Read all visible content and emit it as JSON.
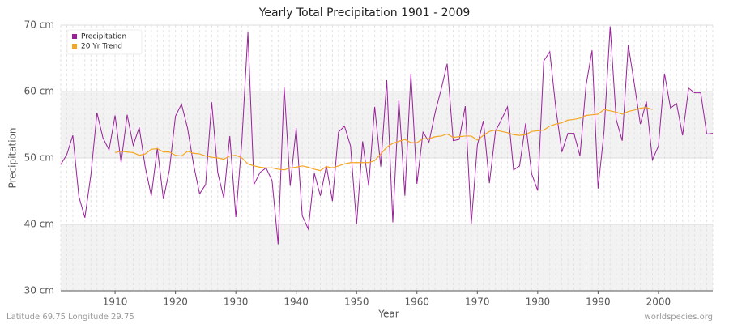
{
  "chart_data": {
    "type": "line",
    "title": "Yearly Total Precipitation 1901 - 2009",
    "x_label": "Year",
    "y_label": "Precipitation",
    "footer_left": "Latitude 69.75 Longitude 29.75",
    "footer_right": "worldspecies.org",
    "legend": "top-left",
    "grid": true,
    "x": [
      1901,
      1902,
      1903,
      1904,
      1905,
      1906,
      1907,
      1908,
      1909,
      1910,
      1911,
      1912,
      1913,
      1914,
      1915,
      1916,
      1917,
      1918,
      1919,
      1920,
      1921,
      1922,
      1923,
      1924,
      1925,
      1926,
      1927,
      1928,
      1929,
      1930,
      1931,
      1932,
      1933,
      1934,
      1935,
      1936,
      1937,
      1938,
      1939,
      1940,
      1941,
      1942,
      1943,
      1944,
      1945,
      1946,
      1947,
      1948,
      1949,
      1950,
      1951,
      1952,
      1953,
      1954,
      1955,
      1956,
      1957,
      1958,
      1959,
      1960,
      1961,
      1962,
      1963,
      1964,
      1965,
      1966,
      1967,
      1968,
      1969,
      1970,
      1971,
      1972,
      1973,
      1974,
      1975,
      1976,
      1977,
      1978,
      1979,
      1980,
      1981,
      1982,
      1983,
      1984,
      1985,
      1986,
      1987,
      1988,
      1989,
      1990,
      1991,
      1992,
      1993,
      1994,
      1995,
      1996,
      1997,
      1998,
      1999,
      2000,
      2001,
      2002,
      2003,
      2004,
      2005,
      2006,
      2007,
      2008,
      2009
    ],
    "series": [
      {
        "name": "Precipitation",
        "color": "#9b1f9b",
        "values": [
          49,
          50.5,
          53.4,
          44.2,
          41,
          47.5,
          56.8,
          53,
          51.2,
          56.4,
          49.3,
          56.5,
          51.9,
          54.6,
          48.6,
          44.3,
          51.5,
          43.8,
          48.2,
          56.3,
          58.1,
          54.5,
          49,
          44.6,
          46,
          58.4,
          47.8,
          44,
          53.3,
          41.1,
          52.5,
          68.9,
          46,
          47.8,
          48.5,
          46.6,
          37,
          60.7,
          45.8,
          54.5,
          41.3,
          39.3,
          47.7,
          44.3,
          48.8,
          43.5,
          53.9,
          54.8,
          51.8,
          40,
          52.5,
          45.8,
          57.7,
          48.7,
          61.7,
          40.3,
          58.8,
          44.3,
          62.7,
          46.1,
          53.9,
          52.4,
          56.8,
          60.3,
          64.2,
          52.6,
          52.8,
          57.8,
          40.1,
          51.9,
          55.6,
          46.2,
          54,
          55.8,
          57.7,
          48.2,
          48.8,
          55.2,
          47.6,
          45.1,
          64.6,
          66,
          57.5,
          50.9,
          53.7,
          53.7,
          50.3,
          60.9,
          66.2,
          45.4,
          54.1,
          69.8,
          55.8,
          52.6,
          67,
          61.2,
          55.1,
          58.5,
          49.7,
          51.8,
          62.7,
          57.5,
          58.2,
          53.4,
          60.5,
          59.8,
          59.8,
          53.6,
          53.7
        ]
      },
      {
        "name": "20 Yr Trend",
        "color": "#f5a623",
        "values": [
          null,
          null,
          null,
          null,
          null,
          null,
          null,
          null,
          null,
          50.8,
          51,
          50.9,
          50.8,
          50.4,
          50.6,
          51.3,
          51.4,
          50.9,
          50.9,
          50.4,
          50.3,
          51,
          50.7,
          50.6,
          50.3,
          50.1,
          50,
          49.8,
          50.3,
          50.4,
          50,
          49.1,
          48.8,
          48.6,
          48.5,
          48.5,
          48.3,
          48.2,
          48.5,
          48.6,
          48.8,
          48.6,
          48.3,
          48.1,
          48.7,
          48.5,
          48.8,
          49.1,
          49.3,
          49.3,
          49.3,
          49.3,
          49.6,
          50.6,
          51.6,
          52.2,
          52.5,
          52.8,
          52.3,
          52.3,
          52.9,
          52.9,
          53.2,
          53.3,
          53.6,
          53.1,
          53.2,
          53.3,
          53.3,
          52.7,
          53.4,
          54,
          54.2,
          54,
          53.8,
          53.5,
          53.4,
          53.5,
          54,
          54.1,
          54.2,
          54.8,
          55.1,
          55.3,
          55.7,
          55.8,
          56,
          56.4,
          56.5,
          56.6,
          57.3,
          57.1,
          56.9,
          56.6,
          57,
          57.2,
          57.5,
          57.6,
          57.3,
          null,
          null,
          null,
          null,
          null,
          null,
          null,
          null,
          null,
          null
        ]
      }
    ],
    "xlim": [
      1901,
      2009
    ],
    "xticks": [
      1910,
      1920,
      1930,
      1940,
      1950,
      1960,
      1970,
      1980,
      1990,
      2000
    ],
    "ylim": [
      30,
      70
    ],
    "yticks": [
      {
        "value": 30,
        "label": "30 cm"
      },
      {
        "value": 40,
        "label": "40 cm"
      },
      {
        "value": 50,
        "label": "50 cm"
      },
      {
        "value": 60,
        "label": "60 cm"
      },
      {
        "value": 70,
        "label": "70 cm"
      }
    ]
  }
}
